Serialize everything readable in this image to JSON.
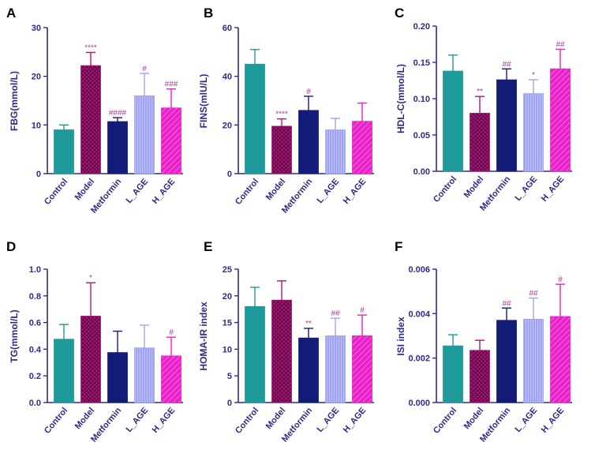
{
  "colors": {
    "axis": "#2e2a8a",
    "label": "#2e2a8a",
    "control": "#1f9a9a",
    "model": "#b0157e",
    "metformin": "#141c7a",
    "l_age": "#9fa4f0",
    "h_age": "#ea21c8",
    "annotation": "#b03a9a"
  },
  "chart_data": [
    {
      "panel_letter": "A",
      "type": "bar",
      "ylabel": "FBG(mmol/L)",
      "categories": [
        "Control",
        "Model",
        "Metformin",
        "L_AGE",
        "H_AGE"
      ],
      "values": [
        9.0,
        22.2,
        10.7,
        16.0,
        13.5
      ],
      "errors": [
        1.0,
        2.7,
        0.8,
        4.6,
        3.9
      ],
      "annotations": [
        "",
        "****",
        "####",
        "#",
        "###"
      ],
      "ylim": [
        0,
        30
      ],
      "ticks": [
        0,
        10,
        20,
        30
      ],
      "tick_labels": [
        "0",
        "10",
        "20",
        "30"
      ]
    },
    {
      "panel_letter": "B",
      "type": "bar",
      "ylabel": "FINS(mlU/L)",
      "categories": [
        "Control",
        "Model",
        "Metformin",
        "L_AGE",
        "H_AGE"
      ],
      "values": [
        45.0,
        19.5,
        26.0,
        18.0,
        21.5
      ],
      "errors": [
        6.0,
        3.0,
        5.8,
        4.7,
        7.5
      ],
      "annotations": [
        "",
        "****",
        "#",
        "",
        ""
      ],
      "ylim": [
        0,
        60
      ],
      "ticks": [
        0,
        20,
        40,
        60
      ],
      "tick_labels": [
        "0",
        "20",
        "40",
        "60"
      ]
    },
    {
      "panel_letter": "C",
      "type": "bar",
      "ylabel": "HDL-C(mmol/L)",
      "categories": [
        "Control",
        "Model",
        "Metformin",
        "L_AGE",
        "H_AGE"
      ],
      "values": [
        0.138,
        0.08,
        0.126,
        0.107,
        0.141
      ],
      "errors": [
        0.022,
        0.023,
        0.015,
        0.019,
        0.027
      ],
      "annotations": [
        "",
        "**",
        "##",
        "*",
        "##"
      ],
      "ylim": [
        0,
        0.2
      ],
      "ticks": [
        0,
        0.05,
        0.1,
        0.15,
        0.2
      ],
      "tick_labels": [
        "0.00",
        "0.05",
        "0.10",
        "0.15",
        "0.20"
      ]
    },
    {
      "panel_letter": "D",
      "type": "bar",
      "ylabel": "TG(mmol/L)",
      "categories": [
        "Control",
        "Model",
        "Metformin",
        "L_AGE",
        "H_AGE"
      ],
      "values": [
        0.475,
        0.648,
        0.375,
        0.41,
        0.35
      ],
      "errors": [
        0.11,
        0.25,
        0.16,
        0.17,
        0.14
      ],
      "annotations": [
        "",
        "*",
        "",
        "",
        "#"
      ],
      "ylim": [
        0,
        1.0
      ],
      "ticks": [
        0,
        0.2,
        0.4,
        0.6,
        0.8,
        1.0
      ],
      "tick_labels": [
        "0.0",
        "0.2",
        "0.4",
        "0.6",
        "0.8",
        "1.0"
      ]
    },
    {
      "panel_letter": "E",
      "type": "bar",
      "ylabel": "HOMA-IR index",
      "categories": [
        "Control",
        "Model",
        "Metformin",
        "L_AGE",
        "H_AGE"
      ],
      "values": [
        18.0,
        19.2,
        12.1,
        12.5,
        12.5
      ],
      "errors": [
        3.6,
        3.6,
        1.8,
        3.3,
        3.9
      ],
      "annotations": [
        "",
        "",
        "**",
        "##",
        "#"
      ],
      "ylim": [
        0,
        25
      ],
      "ticks": [
        0,
        5,
        10,
        15,
        20,
        25
      ],
      "tick_labels": [
        "0",
        "5",
        "10",
        "15",
        "20",
        "25"
      ]
    },
    {
      "panel_letter": "F",
      "type": "bar",
      "ylabel": "ISI index",
      "categories": [
        "Control",
        "Model",
        "Metformin",
        "L_AGE",
        "H_AGE"
      ],
      "values": [
        0.00255,
        0.00235,
        0.0037,
        0.00375,
        0.00387
      ],
      "errors": [
        0.0005,
        0.00045,
        0.00055,
        0.00095,
        0.00145
      ],
      "annotations": [
        "",
        "",
        "##",
        "##",
        "#"
      ],
      "ylim": [
        0,
        0.006
      ],
      "ticks": [
        0,
        0.002,
        0.004,
        0.006
      ],
      "tick_labels": [
        "0.000",
        "0.002",
        "0.004",
        "0.006"
      ]
    }
  ]
}
